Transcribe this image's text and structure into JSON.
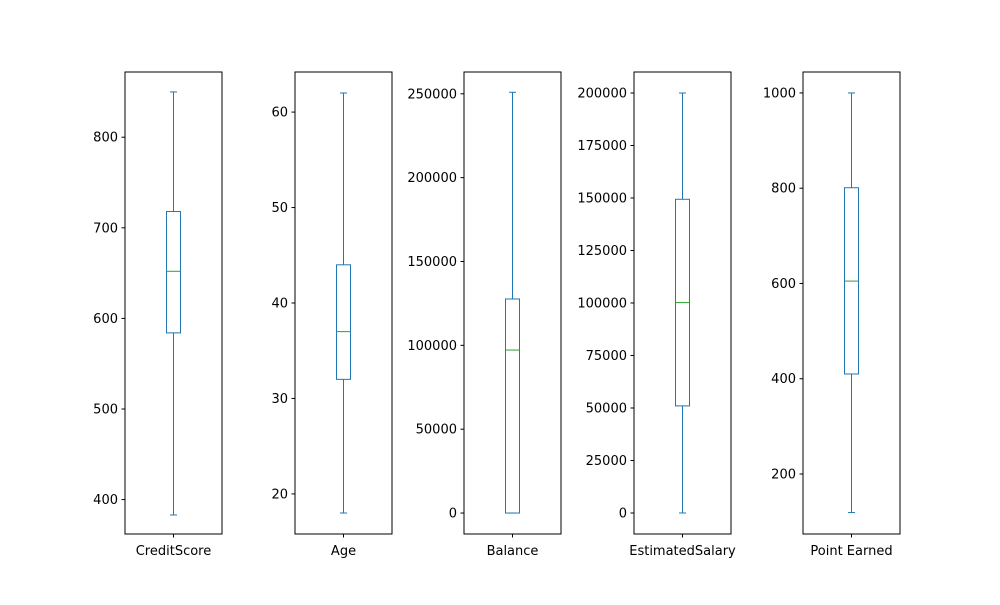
{
  "chart_data": [
    {
      "type": "box",
      "category": "CreditScore",
      "ylim": [
        362,
        872
      ],
      "ticks": [
        400,
        500,
        600,
        700,
        800
      ],
      "tick_labels": [
        "400",
        "500",
        "600",
        "700",
        "800"
      ],
      "stats": {
        "whisker_low": 383,
        "q1": 584,
        "median": 652,
        "q3": 718,
        "whisker_high": 850
      }
    },
    {
      "type": "box",
      "category": "Age",
      "ylim": [
        15.8,
        64.2
      ],
      "ticks": [
        20,
        30,
        40,
        50,
        60
      ],
      "tick_labels": [
        "20",
        "30",
        "40",
        "50",
        "60"
      ],
      "stats": {
        "whisker_low": 18,
        "q1": 32,
        "median": 37,
        "q3": 44,
        "whisker_high": 62
      }
    },
    {
      "type": "box",
      "category": "Balance",
      "ylim": [
        -12500,
        263000
      ],
      "ticks": [
        0,
        50000,
        100000,
        150000,
        200000,
        250000
      ],
      "tick_labels": [
        "0",
        "50000",
        "100000",
        "150000",
        "200000",
        "250000"
      ],
      "stats": {
        "whisker_low": 0,
        "q1": 0,
        "median": 97199,
        "q3": 127644,
        "whisker_high": 250898
      }
    },
    {
      "type": "box",
      "category": "EstimatedSalary",
      "ylim": [
        -10000,
        210000
      ],
      "ticks": [
        0,
        25000,
        50000,
        75000,
        100000,
        125000,
        150000,
        175000,
        200000
      ],
      "tick_labels": [
        "0",
        "25000",
        "50000",
        "75000",
        "100000",
        "125000",
        "150000",
        "175000",
        "200000"
      ],
      "stats": {
        "whisker_low": 11,
        "q1": 51002,
        "median": 100194,
        "q3": 149388,
        "whisker_high": 199992
      }
    },
    {
      "type": "box",
      "category": "Point Earned",
      "ylim": [
        74,
        1044
      ],
      "ticks": [
        200,
        400,
        600,
        800,
        1000
      ],
      "tick_labels": [
        "200",
        "400",
        "600",
        "800",
        "1000"
      ],
      "stats": {
        "whisker_low": 119,
        "q1": 410,
        "median": 605,
        "q3": 801,
        "whisker_high": 1000
      }
    }
  ],
  "colors": {
    "box": "#1f77b4",
    "median": "#2ca02c",
    "axes": "#000000"
  }
}
